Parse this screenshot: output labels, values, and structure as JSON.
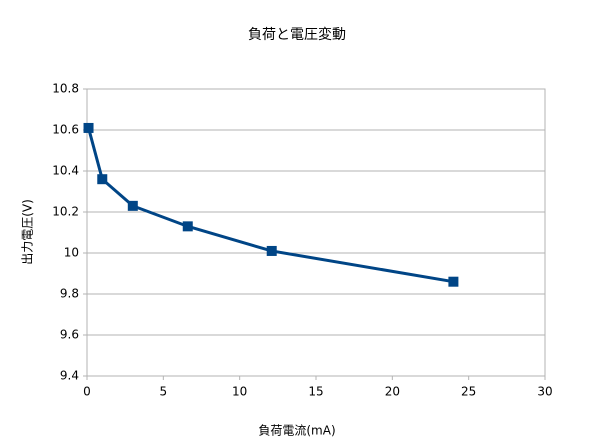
{
  "chart_data": {
    "type": "line",
    "title": "負荷と電圧変動",
    "x_label": "負荷電流(mA)",
    "y_label": "出力電圧(V)",
    "series": [
      {
        "name": "出力電圧",
        "color": "#004586",
        "x": [
          0.1,
          1,
          3,
          6.6,
          12.1,
          24
        ],
        "values": [
          10.61,
          10.36,
          10.23,
          10.13,
          10.01,
          9.86
        ]
      }
    ],
    "xlim": [
      0,
      30
    ],
    "xticks": [
      0,
      5,
      10,
      15,
      20,
      25,
      30
    ],
    "ylim": [
      9.4,
      10.8
    ],
    "yticks": [
      9.4,
      9.6,
      9.8,
      10,
      10.2,
      10.4,
      10.6,
      10.8
    ],
    "grid": true,
    "marker": "square"
  }
}
